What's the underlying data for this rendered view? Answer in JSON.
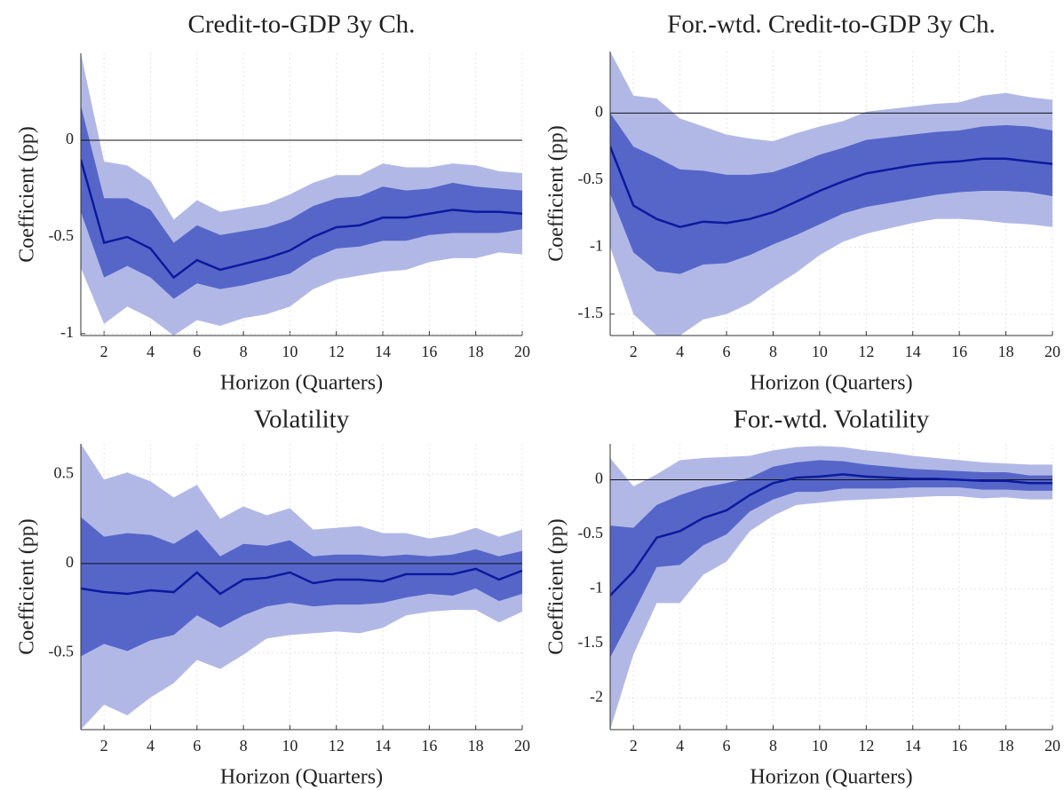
{
  "chart_data": [
    {
      "type": "line",
      "title": "Credit-to-GDP 3y Ch.",
      "xlabel": "Horizon (Quarters)",
      "ylabel": "Coefficient (pp)",
      "x": [
        1,
        2,
        3,
        4,
        5,
        6,
        7,
        8,
        9,
        10,
        11,
        12,
        13,
        14,
        15,
        16,
        17,
        18,
        19,
        20
      ],
      "values": [
        -0.1,
        -0.53,
        -0.5,
        -0.56,
        -0.71,
        -0.62,
        -0.67,
        -0.64,
        -0.61,
        -0.57,
        -0.5,
        -0.45,
        -0.44,
        -0.4,
        -0.4,
        -0.38,
        -0.36,
        -0.37,
        -0.37,
        -0.38
      ],
      "inner_upper": [
        0.18,
        -0.3,
        -0.3,
        -0.36,
        -0.53,
        -0.44,
        -0.49,
        -0.47,
        -0.45,
        -0.41,
        -0.34,
        -0.3,
        -0.29,
        -0.24,
        -0.26,
        -0.25,
        -0.22,
        -0.24,
        -0.25,
        -0.26
      ],
      "inner_lower": [
        -0.37,
        -0.71,
        -0.65,
        -0.71,
        -0.82,
        -0.74,
        -0.77,
        -0.75,
        -0.72,
        -0.69,
        -0.61,
        -0.56,
        -0.55,
        -0.52,
        -0.52,
        -0.49,
        -0.48,
        -0.48,
        -0.48,
        -0.46
      ],
      "outer_upper": [
        0.45,
        -0.11,
        -0.13,
        -0.21,
        -0.41,
        -0.31,
        -0.37,
        -0.35,
        -0.33,
        -0.28,
        -0.22,
        -0.18,
        -0.18,
        -0.12,
        -0.14,
        -0.14,
        -0.12,
        -0.13,
        -0.16,
        -0.17
      ],
      "outer_lower": [
        -0.66,
        -0.95,
        -0.86,
        -0.92,
        -1.01,
        -0.93,
        -0.96,
        -0.92,
        -0.9,
        -0.86,
        -0.77,
        -0.72,
        -0.7,
        -0.68,
        -0.67,
        -0.63,
        -0.61,
        -0.61,
        -0.58,
        -0.59
      ],
      "color": "#0b1a9e",
      "inner_color": "#5666c8",
      "outer_color": "#b2b8e6",
      "xlim": [
        1,
        20
      ],
      "xticks": [
        2,
        4,
        6,
        8,
        10,
        12,
        14,
        16,
        18,
        20
      ],
      "ylim": [
        -1.01,
        0.45
      ],
      "yticks": [
        -1,
        -0.5,
        0
      ],
      "grid": true
    },
    {
      "type": "line",
      "title": "For.-wtd. Credit-to-GDP 3y Ch.",
      "xlabel": "Horizon (Quarters)",
      "ylabel": "Coefficient (pp)",
      "x": [
        1,
        2,
        3,
        4,
        5,
        6,
        7,
        8,
        9,
        10,
        11,
        12,
        13,
        14,
        15,
        16,
        17,
        18,
        19,
        20
      ],
      "values": [
        -0.25,
        -0.69,
        -0.79,
        -0.85,
        -0.81,
        -0.82,
        -0.79,
        -0.74,
        -0.66,
        -0.58,
        -0.51,
        -0.45,
        -0.42,
        -0.39,
        -0.37,
        -0.36,
        -0.34,
        -0.34,
        -0.36,
        -0.38
      ],
      "inner_upper": [
        0.0,
        -0.25,
        -0.33,
        -0.42,
        -0.43,
        -0.46,
        -0.46,
        -0.44,
        -0.38,
        -0.31,
        -0.26,
        -0.2,
        -0.18,
        -0.16,
        -0.14,
        -0.13,
        -0.1,
        -0.09,
        -0.1,
        -0.13
      ],
      "inner_lower": [
        -0.6,
        -1.04,
        -1.18,
        -1.2,
        -1.13,
        -1.12,
        -1.06,
        -0.98,
        -0.91,
        -0.83,
        -0.75,
        -0.7,
        -0.67,
        -0.64,
        -0.61,
        -0.59,
        -0.58,
        -0.58,
        -0.59,
        -0.62
      ],
      "outer_upper": [
        0.46,
        0.13,
        0.11,
        -0.04,
        -0.1,
        -0.16,
        -0.19,
        -0.21,
        -0.15,
        -0.1,
        -0.06,
        0.01,
        0.03,
        0.05,
        0.07,
        0.08,
        0.13,
        0.15,
        0.12,
        0.1
      ],
      "outer_lower": [
        -1.0,
        -1.5,
        -1.66,
        -1.66,
        -1.54,
        -1.5,
        -1.42,
        -1.3,
        -1.19,
        -1.06,
        -0.96,
        -0.9,
        -0.86,
        -0.82,
        -0.79,
        -0.79,
        -0.8,
        -0.82,
        -0.83,
        -0.85
      ],
      "color": "#0b1a9e",
      "inner_color": "#5666c8",
      "outer_color": "#b2b8e6",
      "xlim": [
        1,
        20
      ],
      "xticks": [
        2,
        4,
        6,
        8,
        10,
        12,
        14,
        16,
        18,
        20
      ],
      "ylim": [
        -1.66,
        0.46
      ],
      "yticks": [
        -1.5,
        -1,
        -0.5,
        0
      ],
      "grid": true
    },
    {
      "type": "line",
      "title": "Volatility",
      "xlabel": "Horizon (Quarters)",
      "ylabel": "Coefficient (pp)",
      "x": [
        1,
        2,
        3,
        4,
        5,
        6,
        7,
        8,
        9,
        10,
        11,
        12,
        13,
        14,
        15,
        16,
        17,
        18,
        19,
        20
      ],
      "values": [
        -0.14,
        -0.16,
        -0.17,
        -0.15,
        -0.16,
        -0.05,
        -0.17,
        -0.09,
        -0.08,
        -0.05,
        -0.11,
        -0.09,
        -0.09,
        -0.1,
        -0.06,
        -0.06,
        -0.06,
        -0.03,
        -0.09,
        -0.04
      ],
      "inner_upper": [
        0.26,
        0.15,
        0.17,
        0.16,
        0.11,
        0.19,
        0.04,
        0.11,
        0.1,
        0.13,
        0.04,
        0.05,
        0.05,
        0.04,
        0.05,
        0.04,
        0.05,
        0.08,
        0.04,
        0.07
      ],
      "inner_lower": [
        -0.52,
        -0.45,
        -0.49,
        -0.43,
        -0.4,
        -0.29,
        -0.36,
        -0.29,
        -0.24,
        -0.22,
        -0.24,
        -0.23,
        -0.23,
        -0.22,
        -0.19,
        -0.17,
        -0.18,
        -0.14,
        -0.21,
        -0.17
      ],
      "outer_upper": [
        0.67,
        0.47,
        0.51,
        0.46,
        0.37,
        0.44,
        0.25,
        0.32,
        0.27,
        0.31,
        0.19,
        0.2,
        0.21,
        0.17,
        0.17,
        0.14,
        0.16,
        0.2,
        0.15,
        0.19
      ],
      "outer_lower": [
        -0.93,
        -0.79,
        -0.85,
        -0.75,
        -0.67,
        -0.54,
        -0.59,
        -0.51,
        -0.42,
        -0.4,
        -0.39,
        -0.38,
        -0.39,
        -0.36,
        -0.29,
        -0.27,
        -0.26,
        -0.26,
        -0.33,
        -0.27
      ],
      "color": "#0b1a9e",
      "inner_color": "#5666c8",
      "outer_color": "#b2b8e6",
      "xlim": [
        1,
        20
      ],
      "xticks": [
        2,
        4,
        6,
        8,
        10,
        12,
        14,
        16,
        18,
        20
      ],
      "ylim": [
        -0.93,
        0.67
      ],
      "yticks": [
        -0.5,
        0,
        0.5
      ],
      "grid": true
    },
    {
      "type": "line",
      "title": "For.-wtd. Volatility",
      "xlabel": "Horizon (Quarters)",
      "ylabel": "Coefficient (pp)",
      "x": [
        1,
        2,
        3,
        4,
        5,
        6,
        7,
        8,
        9,
        10,
        11,
        12,
        13,
        14,
        15,
        16,
        17,
        18,
        19,
        20
      ],
      "values": [
        -1.06,
        -0.84,
        -0.53,
        -0.47,
        -0.35,
        -0.28,
        -0.14,
        -0.03,
        0.02,
        0.03,
        0.05,
        0.03,
        0.02,
        0.01,
        0.01,
        0.0,
        -0.01,
        -0.01,
        -0.03,
        -0.03
      ],
      "inner_upper": [
        -0.42,
        -0.44,
        -0.23,
        -0.14,
        -0.07,
        -0.03,
        0.02,
        0.12,
        0.16,
        0.18,
        0.17,
        0.14,
        0.12,
        0.1,
        0.09,
        0.08,
        0.07,
        0.07,
        0.04,
        0.04
      ],
      "inner_lower": [
        -1.63,
        -1.22,
        -0.8,
        -0.78,
        -0.6,
        -0.5,
        -0.29,
        -0.18,
        -0.11,
        -0.11,
        -0.08,
        -0.08,
        -0.08,
        -0.07,
        -0.07,
        -0.07,
        -0.09,
        -0.09,
        -0.1,
        -0.1
      ],
      "outer_upper": [
        0.2,
        -0.06,
        0.05,
        0.18,
        0.2,
        0.21,
        0.22,
        0.27,
        0.3,
        0.31,
        0.3,
        0.27,
        0.25,
        0.22,
        0.2,
        0.18,
        0.16,
        0.15,
        0.14,
        0.14
      ],
      "outer_lower": [
        -2.29,
        -1.6,
        -1.13,
        -1.13,
        -0.87,
        -0.75,
        -0.47,
        -0.33,
        -0.23,
        -0.21,
        -0.19,
        -0.18,
        -0.17,
        -0.16,
        -0.15,
        -0.15,
        -0.17,
        -0.16,
        -0.18,
        -0.18
      ],
      "color": "#0b1a9e",
      "inner_color": "#5666c8",
      "outer_color": "#b2b8e6",
      "xlim": [
        1,
        20
      ],
      "xticks": [
        2,
        4,
        6,
        8,
        10,
        12,
        14,
        16,
        18,
        20
      ],
      "ylim": [
        -2.29,
        0.33
      ],
      "yticks": [
        -2,
        -1.5,
        -1,
        -0.5,
        0
      ],
      "grid": true
    }
  ]
}
